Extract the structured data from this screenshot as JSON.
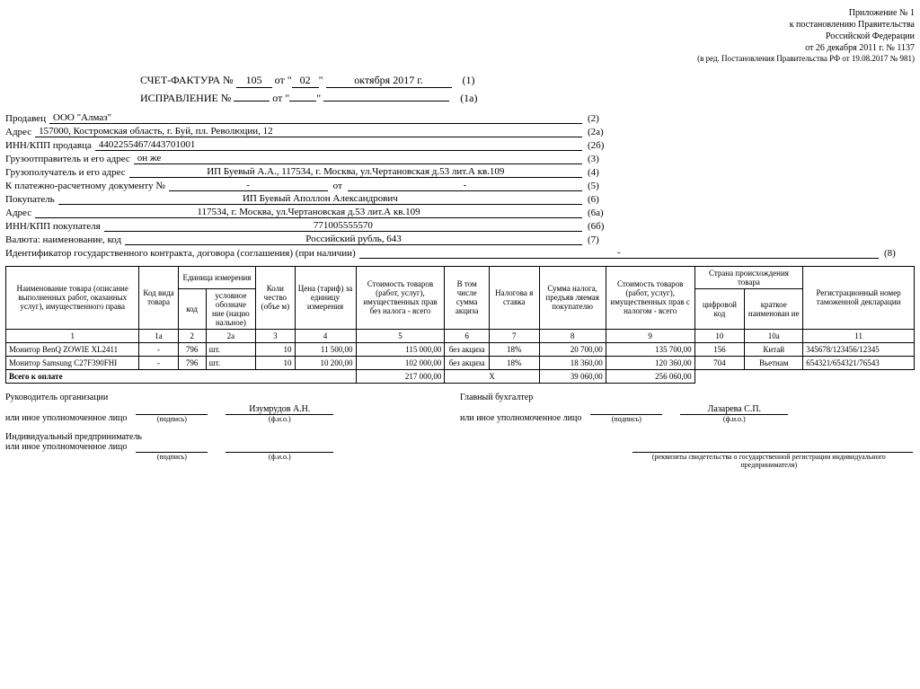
{
  "topright": {
    "l1": "Приложение № 1",
    "l2": "к постановлению Правительства",
    "l3": "Российской Федерации",
    "l4": "от 26 декабря 2011 г. № 1137",
    "l5": "(в ред. Постановления Правительства РФ от 19.08.2017 № 981)"
  },
  "header": {
    "invoice_label": "СЧЕТ-ФАКТУРА  №",
    "invoice_num": "105",
    "from": "от",
    "day": "02",
    "month_year": "октября 2017 г.",
    "n1": "(1)",
    "correction_label": "ИСПРАВЛЕНИЕ  №",
    "corr_num": "",
    "corr_from": "от",
    "corr_day": "",
    "corr_month": "",
    "n1a": "(1а)"
  },
  "info": {
    "seller_l": "Продавец",
    "seller_v": "ООО \"Алмаз\"",
    "seller_n": "(2)",
    "addr_l": "Адрес",
    "addr_v": "157000, Костромская область, г. Буй, пл. Революции, 12",
    "addr_n": "(2а)",
    "inn_l": "ИНН/КПП продавца",
    "inn_v": "4402255467/443701001",
    "inn_n": "(2б)",
    "shipper_l": "Грузоотправитель и его адрес",
    "shipper_v": "он же",
    "shipper_n": "(3)",
    "consignee_l": "Грузополучатель и его адрес",
    "consignee_v": "ИП Буевый А.А., 117534, г. Москва, ул.Чертановская д.53 лит.А  кв.109",
    "consignee_n": "(4)",
    "paydoc_l": "К платежно-расчетному документу №",
    "paydoc_v1": "-",
    "paydoc_from": "от",
    "paydoc_v2": "-",
    "paydoc_n": "(5)",
    "buyer_l": "Покупатель",
    "buyer_v": "ИП Буевый Аполлон Александрович",
    "buyer_n": "(6)",
    "baddr_l": "Адрес",
    "baddr_v": "117534, г. Москва, ул.Чертановская д.53 лит.А  кв.109",
    "baddr_n": "(6а)",
    "binn_l": "ИНН/КПП покупателя",
    "binn_v": "771005555570",
    "binn_n": "(6б)",
    "curr_l": "Валюта: наименование, код",
    "curr_v": "Российский рубль, 643",
    "curr_n": "(7)",
    "contract_l": "Идентификатор государственного контракта, договора (соглашения) (при наличии)",
    "contract_v": "-",
    "contract_n": "(8)"
  },
  "table": {
    "headers": {
      "h1": "Наименование товара (описание выполненных работ, оказанных услуг), имущественного права",
      "h1a": "Код вида товара",
      "h2g": "Единица измерения",
      "h2": "код",
      "h2a": "условное обозначе ние (нацио нальное)",
      "h3": "Коли чество (объе м)",
      "h4": "Цена (тариф) за единицу измерения",
      "h5": "Стоимость товаров (работ, услуг), имущественных прав без налога - всего",
      "h6": "В том числе сумма акциза",
      "h7": "Налогова я ставка",
      "h8": "Сумма налога, предъяв ляемая покупателю",
      "h9": "Стоимость товаров (работ, услуг), имущественных прав с налогом - всего",
      "h10g": "Страна происхождения товара",
      "h10": "цифровой код",
      "h10a": "краткое наименован ие",
      "h11": "Регистрационный номер таможенной декларации"
    },
    "nums": {
      "c1": "1",
      "c1a": "1а",
      "c2": "2",
      "c2a": "2а",
      "c3": "3",
      "c4": "4",
      "c5": "5",
      "c6": "6",
      "c7": "7",
      "c8": "8",
      "c9": "9",
      "c10": "10",
      "c10a": "10а",
      "c11": "11"
    },
    "rows": [
      {
        "name": "Монитор BenQ ZOWIE XL2411",
        "code": "-",
        "uc": "796",
        "un": "шт.",
        "qty": "10",
        "price": "11 500,00",
        "cost": "115 000,00",
        "excise": "без акциза",
        "rate": "18%",
        "tax": "20 700,00",
        "total": "135 700,00",
        "ccode": "156",
        "cname": "Китай",
        "decl": "345678/123456/12345"
      },
      {
        "name": "Монитор Samsung C27F390FHI",
        "code": "-",
        "uc": "796",
        "un": "шт.",
        "qty": "10",
        "price": "10 200,00",
        "cost": "102 000,00",
        "excise": "без акциза",
        "rate": "18%",
        "tax": "18 360,00",
        "total": "120 360,00",
        "ccode": "704",
        "cname": "Вьетнам",
        "decl": "654321/654321/76543"
      }
    ],
    "totals": {
      "label": "Всего к оплате",
      "cost": "217 000,00",
      "x": "X",
      "tax": "39 060,00",
      "total": "256 060,00"
    }
  },
  "footer": {
    "head_l": "Руководитель организации",
    "acc_l": "Главный бухгалтер",
    "auth_l": "или иное уполномоченное лицо",
    "sig_cap": "(подпись)",
    "fio_cap": "(ф.и.о.)",
    "head_name": "Изумрудов А.Н.",
    "acc_name": "Лазарева С.П.",
    "ip_l": "Индивидуальный предприниматель",
    "req_cap": "(реквизиты свидетельства о государственной регистрации индивидуального предпринимателя)"
  }
}
